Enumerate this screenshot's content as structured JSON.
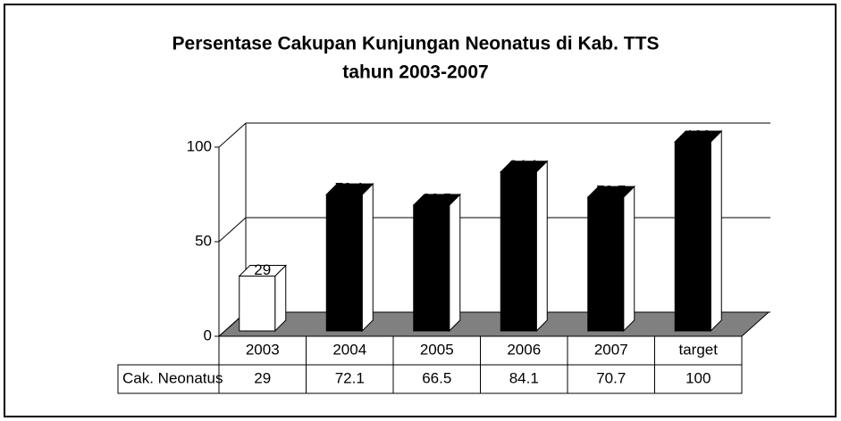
{
  "chart_data": {
    "type": "bar3d",
    "title": [
      "Persentase Cakupan Kunjungan  Neonatus di Kab. TTS",
      "tahun 2003-2007"
    ],
    "categories": [
      "2003",
      "2004",
      "2005",
      "2006",
      "2007",
      "target"
    ],
    "series": [
      {
        "name": "Cak. Neonatus",
        "values": [
          29,
          72.1,
          66.5,
          84.1,
          70.7,
          100
        ],
        "colors": [
          "#ffffff",
          "#000000",
          "#000000",
          "#000000",
          "#000000",
          "#000000"
        ]
      }
    ],
    "ylim": [
      0,
      100
    ],
    "yticks": [
      0,
      50,
      100
    ],
    "grid": true,
    "floor_color": "#808080"
  }
}
